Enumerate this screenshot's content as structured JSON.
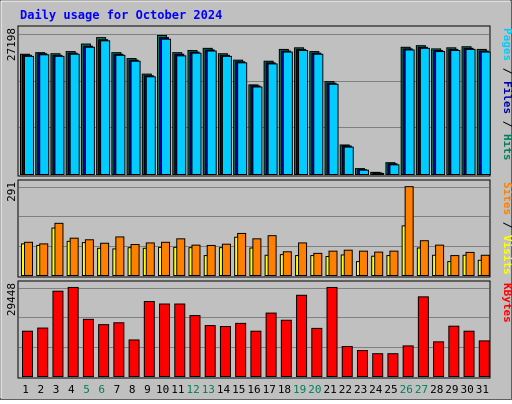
{
  "chart_data": [
    {
      "type": "bar",
      "title": "Daily usage for October 2024",
      "ylabel_parts": [
        {
          "text": "Pages",
          "color": "#00ccff"
        },
        {
          "text": " / ",
          "color": "#000000"
        },
        {
          "text": "Files",
          "color": "#0000aa"
        },
        {
          "text": " / ",
          "color": "#000000"
        },
        {
          "text": "Hits",
          "color": "#00805c"
        }
      ],
      "ymax_label": "27198",
      "ylim": [
        0,
        27198
      ],
      "categories": [
        "1",
        "2",
        "3",
        "4",
        "5",
        "6",
        "7",
        "8",
        "9",
        "10",
        "11",
        "12",
        "13",
        "14",
        "15",
        "16",
        "17",
        "18",
        "19",
        "20",
        "21",
        "22",
        "23",
        "24",
        "25",
        "26",
        "27",
        "28",
        "29",
        "30",
        "31"
      ],
      "weekend_days": [
        "5",
        "6",
        "12",
        "13",
        "19",
        "20",
        "26",
        "27"
      ],
      "grid": true,
      "series": [
        {
          "name": "Hits",
          "color": "#00805c",
          "values": [
            22400,
            22700,
            22500,
            22900,
            24300,
            25500,
            22700,
            21600,
            18700,
            25900,
            22700,
            23100,
            23500,
            22500,
            21300,
            16700,
            21100,
            23300,
            23600,
            22900,
            17300,
            5500,
            1100,
            400,
            2200,
            23700,
            24000,
            23400,
            23600,
            23800,
            23300
          ]
        },
        {
          "name": "Files",
          "color": "#0000aa",
          "values": [
            22200,
            22500,
            22200,
            22600,
            23900,
            25100,
            22400,
            21300,
            18400,
            25500,
            22400,
            22800,
            23200,
            22200,
            21000,
            16500,
            20800,
            23000,
            23300,
            22600,
            17000,
            5300,
            900,
            300,
            2000,
            23400,
            23700,
            23100,
            23300,
            23500,
            23000
          ]
        },
        {
          "name": "Pages",
          "color": "#00ccff",
          "values": [
            22000,
            22300,
            22000,
            22400,
            23700,
            24900,
            22200,
            21100,
            18200,
            25200,
            22100,
            22600,
            23000,
            22000,
            20800,
            16300,
            20600,
            22800,
            23100,
            22400,
            16800,
            5100,
            800,
            200,
            1800,
            23200,
            23500,
            22900,
            23100,
            23300,
            22800
          ]
        }
      ]
    },
    {
      "type": "bar",
      "ylabel_parts": [
        {
          "text": "Sites",
          "color": "#ff8000"
        },
        {
          "text": " / ",
          "color": "#000000"
        },
        {
          "text": "Visits",
          "color": "#ffff00"
        }
      ],
      "ymax_label": "291",
      "ylim": [
        0,
        291
      ],
      "grid": true,
      "series": [
        {
          "name": "Visits",
          "color": "#ffff00",
          "values": [
            100,
            95,
            150,
            108,
            104,
            86,
            84,
            88,
            86,
            89,
            89,
            88,
            63,
            88,
            121,
            87,
            64,
            66,
            63,
            63,
            60,
            65,
            44,
            61,
            63,
            157,
            87,
            64,
            44,
            64,
            48
          ]
        },
        {
          "name": "Sites",
          "color": "#ff8000",
          "values": [
            105,
            100,
            165,
            118,
            113,
            102,
            122,
            98,
            103,
            105,
            116,
            96,
            95,
            99,
            133,
            116,
            126,
            75,
            103,
            70,
            77,
            80,
            77,
            74,
            77,
            281,
            110,
            96,
            63,
            73,
            64
          ]
        }
      ]
    },
    {
      "type": "bar",
      "ylabel_parts": [
        {
          "text": "KBytes",
          "color": "#ff0000"
        }
      ],
      "ymax_label": "29448",
      "ylim": [
        0,
        29448
      ],
      "grid": true,
      "series": [
        {
          "name": "KBytes",
          "color": "#ff0000",
          "values": [
            14500,
            15500,
            27300,
            28500,
            18300,
            16600,
            17200,
            11700,
            24000,
            23200,
            23200,
            19500,
            16300,
            16000,
            17000,
            14500,
            20300,
            18000,
            26000,
            15400,
            28500,
            9600,
            8300,
            7300,
            7300,
            9800,
            25500,
            11100,
            16100,
            14500,
            11400
          ]
        }
      ]
    }
  ]
}
